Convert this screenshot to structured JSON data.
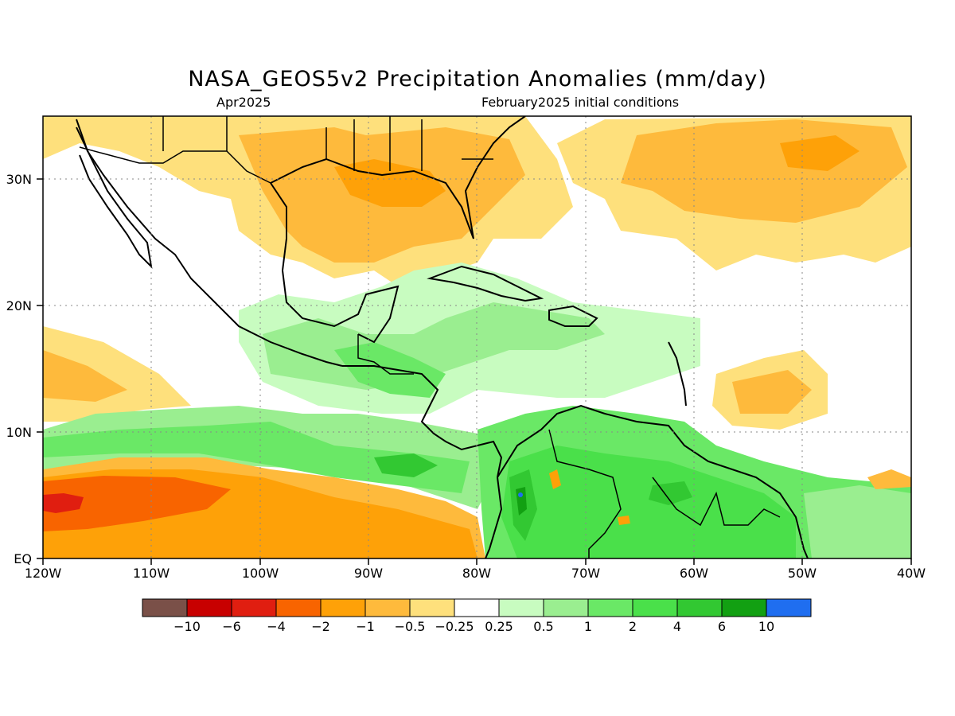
{
  "header": {
    "title": "NASA_GEOS5v2 Precipitation Anomalies (mm/day)",
    "subtitle_left": "Apr2025",
    "subtitle_right": "February2025 initial conditions"
  },
  "axes": {
    "lat_labels": [
      "30N",
      "20N",
      "10N",
      "EQ"
    ],
    "lon_labels": [
      "120W",
      "110W",
      "100W",
      "90W",
      "80W",
      "70W",
      "60W",
      "50W",
      "40W"
    ]
  },
  "colorbar": {
    "labels": [
      "−10",
      "−6",
      "−4",
      "−2",
      "−1",
      "−0.5",
      "−0.25",
      "0.25",
      "0.5",
      "1",
      "2",
      "4",
      "6",
      "10"
    ],
    "colors": [
      "#7a5048",
      "#c80000",
      "#e01e10",
      "#f86400",
      "#fea108",
      "#feba3c",
      "#fee07c",
      "#ffffff",
      "#c8fcc0",
      "#9aee90",
      "#6ae866",
      "#4ae04a",
      "#32c832",
      "#12a012",
      "#1f6ef0"
    ]
  },
  "map": {
    "colors": {
      "orange_dark": "#f86400",
      "red": "#e01e10",
      "orange": "#fea108",
      "orange_light": "#feba3c",
      "yellow": "#fee07c",
      "green_pale": "#c8fcc0",
      "green_light": "#9aee90",
      "green": "#6ae866",
      "green_mid": "#4ae04a",
      "green_dark": "#32c832",
      "green_deep": "#12a012",
      "blue": "#1f6ef0"
    }
  }
}
